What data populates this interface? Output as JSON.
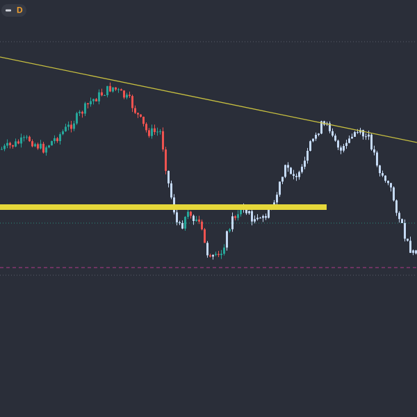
{
  "toolbar": {
    "badge": "D"
  }
}
